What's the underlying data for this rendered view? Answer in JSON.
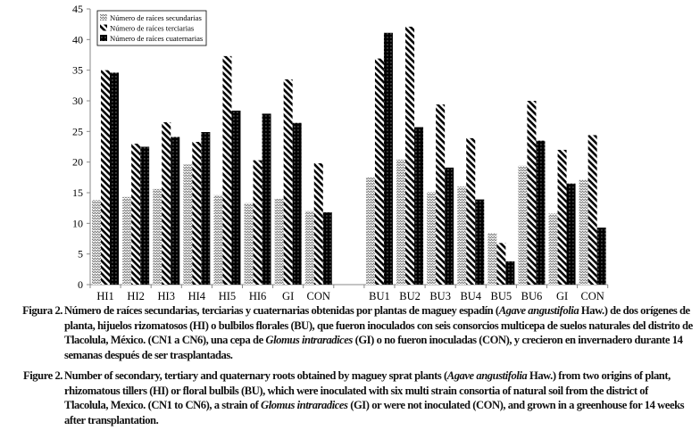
{
  "chart_data": {
    "type": "bar",
    "title": "",
    "xlabel": "",
    "ylabel": "",
    "ylim": [
      0,
      45
    ],
    "yticks": [
      "0",
      "5",
      "10",
      "15",
      "20",
      "25",
      "30",
      "35",
      "40",
      "45"
    ],
    "legend_position": "top-left",
    "groups": [
      {
        "name": "HI",
        "categories": [
          "HI1",
          "HI2",
          "HI3",
          "HI4",
          "HI5",
          "HI6",
          "GI",
          "CON"
        ]
      },
      {
        "name": "BU",
        "categories": [
          "BU1",
          "BU2",
          "BU3",
          "BU4",
          "BU5",
          "BU6",
          "GI",
          "CON"
        ]
      }
    ],
    "series": [
      {
        "name": "Número de raíces secundarias",
        "pattern": "zigzag",
        "values": [
          13.8,
          14.3,
          15.6,
          19.6,
          14.6,
          13.3,
          14.0,
          12.0,
          17.5,
          20.4,
          15.1,
          16.0,
          8.4,
          19.4,
          11.6,
          17.1
        ]
      },
      {
        "name": "Número de raíces terciarias",
        "pattern": "diagonal",
        "values": [
          35.0,
          23.0,
          26.5,
          23.3,
          37.3,
          20.3,
          33.5,
          19.8,
          36.9,
          42.1,
          29.4,
          23.9,
          6.8,
          30.0,
          22.0,
          24.4
        ]
      },
      {
        "name": "Número de raíces cuaternarias",
        "pattern": "dotted-black",
        "values": [
          34.6,
          22.5,
          24.1,
          24.9,
          28.4,
          27.9,
          26.4,
          11.8,
          41.1,
          25.7,
          19.1,
          13.9,
          3.8,
          23.5,
          16.5,
          9.3
        ]
      }
    ]
  },
  "caption_es": {
    "label": "Figura 2.",
    "segments": [
      {
        "text": "Número de raíces secundarias, terciarias y cuaternarias obtenidas por plantas de maguey espadín (",
        "italic": false
      },
      {
        "text": "Agave angustifolia",
        "italic": true
      },
      {
        "text": " Haw.) de dos orígenes de planta, hijuelos rizomatosos (HI) o bulbilos florales (BU), que fueron inoculados con seis consorcios multicepa de suelos naturales del distrito de Tlacolula, México. (CN1 a CN6), una cepa de ",
        "italic": false
      },
      {
        "text": "Glomus intraradices",
        "italic": true
      },
      {
        "text": " (GI) o no fueron inoculadas (CON), y crecieron en invernadero durante 14 semanas después de ser trasplantadas.",
        "italic": false
      }
    ]
  },
  "caption_en": {
    "label": "Figure 2.",
    "segments": [
      {
        "text": "Number of secondary, tertiary and quaternary roots obtained by maguey sprat plants (",
        "italic": false
      },
      {
        "text": "Agave angustifolia",
        "italic": true
      },
      {
        "text": " Haw.) from two origins of plant, rhizomatous tillers (HI) or floral bulbils (BU), which were inoculated with six multi strain consortia of natural soil from the district of Tlacolula, Mexico. (CN1 to CN6), a strain of ",
        "italic": false
      },
      {
        "text": "Glomus intraradices",
        "italic": true
      },
      {
        "text": " (GI) or were not inoculated (CON), and grown in a greenhouse for 14 weeks after transplantation.",
        "italic": false
      }
    ]
  }
}
